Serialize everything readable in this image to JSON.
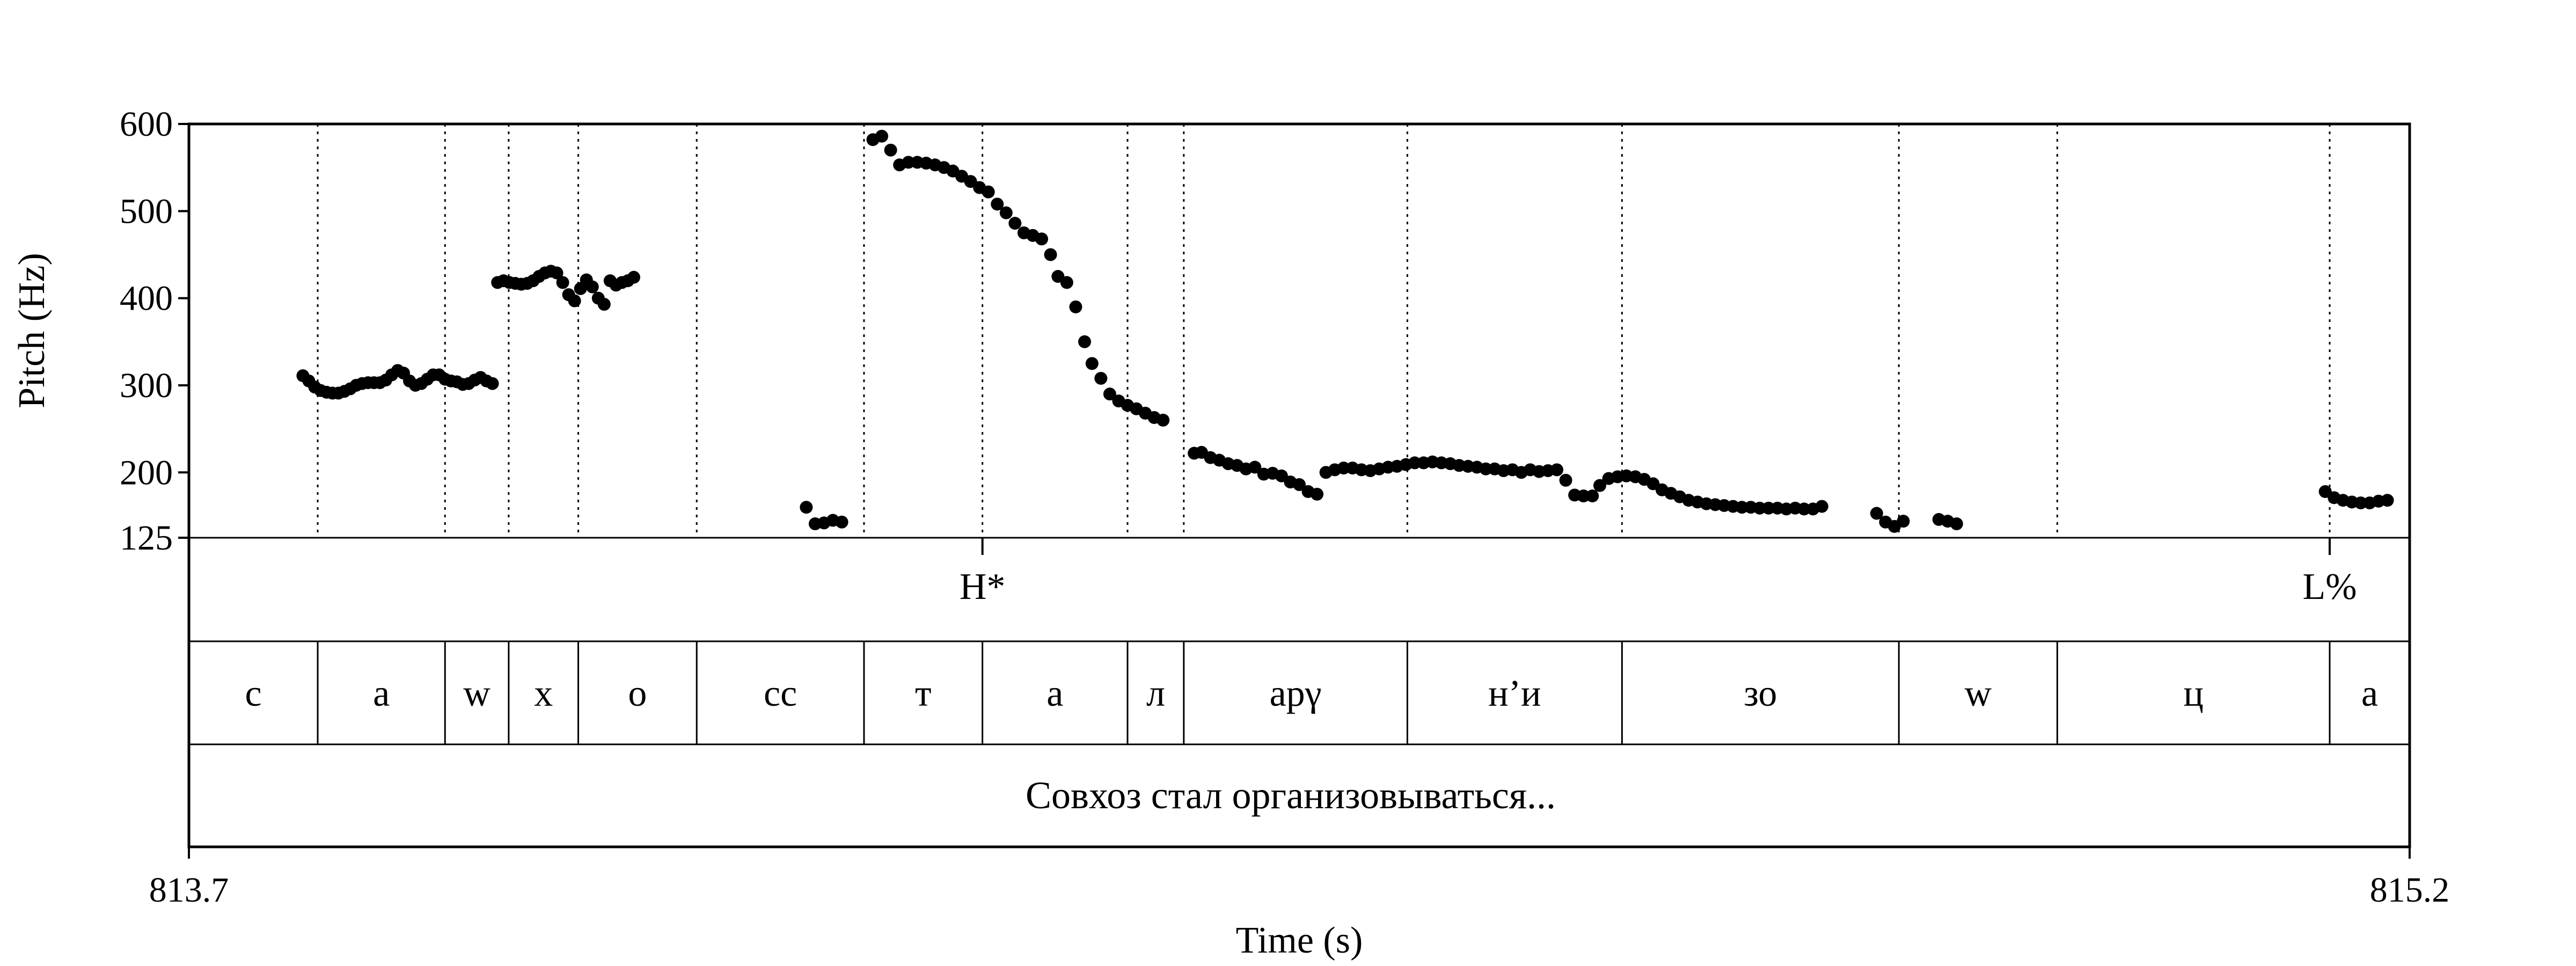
{
  "chart_data": {
    "type": "scatter",
    "xlabel": "Time (s)",
    "ylabel": "Pitch (Hz)",
    "xlim": [
      813.7,
      815.2
    ],
    "ylim": [
      125,
      600
    ],
    "y_ticks": [
      125,
      200,
      300,
      400,
      500,
      600
    ],
    "x_tick_labels": [
      "813.7",
      "815.2"
    ],
    "grid": false,
    "series": [
      {
        "values": [
          [
            813.777,
            311
          ],
          [
            813.781,
            305
          ],
          [
            813.785,
            298
          ],
          [
            813.789,
            294
          ],
          [
            813.793,
            292
          ],
          [
            813.797,
            291
          ],
          [
            813.801,
            291
          ],
          [
            813.805,
            293
          ],
          [
            813.809,
            296
          ],
          [
            813.813,
            300
          ],
          [
            813.817,
            302
          ],
          [
            813.821,
            303
          ],
          [
            813.825,
            303
          ],
          [
            813.829,
            303
          ],
          [
            813.833,
            306
          ],
          [
            813.837,
            312
          ],
          [
            813.841,
            317
          ],
          [
            813.845,
            314
          ],
          [
            813.849,
            305
          ],
          [
            813.853,
            300
          ],
          [
            813.857,
            302
          ],
          [
            813.861,
            307
          ],
          [
            813.865,
            312
          ],
          [
            813.869,
            312
          ],
          [
            813.873,
            307
          ],
          [
            813.877,
            305
          ],
          [
            813.881,
            304
          ],
          [
            813.885,
            301
          ],
          [
            813.889,
            302
          ],
          [
            813.893,
            306
          ],
          [
            813.897,
            309
          ],
          [
            813.901,
            305
          ],
          [
            813.905,
            302
          ],
          [
            813.9085,
            418
          ],
          [
            813.9125,
            420
          ],
          [
            813.9165,
            418
          ],
          [
            813.9205,
            417
          ],
          [
            813.9245,
            416
          ],
          [
            813.9285,
            417
          ],
          [
            813.9325,
            420
          ],
          [
            813.9365,
            425
          ],
          [
            813.9405,
            429
          ],
          [
            813.9445,
            431
          ],
          [
            813.9485,
            429
          ],
          [
            813.9525,
            418
          ],
          [
            813.9565,
            404
          ],
          [
            813.9605,
            397
          ],
          [
            813.9645,
            411
          ],
          [
            813.9685,
            421
          ],
          [
            813.9725,
            413
          ],
          [
            813.9765,
            400
          ],
          [
            813.9805,
            393
          ],
          [
            813.9845,
            420
          ],
          [
            813.9885,
            415
          ],
          [
            813.9925,
            418
          ],
          [
            813.9965,
            420
          ],
          [
            814.0005,
            424
          ],
          [
            814.117,
            160
          ],
          [
            814.123,
            141
          ],
          [
            814.129,
            142
          ],
          [
            814.135,
            145
          ],
          [
            814.141,
            143
          ],
          [
            814.162,
            582
          ],
          [
            814.168,
            586
          ],
          [
            814.174,
            570
          ],
          [
            814.18,
            553
          ],
          [
            814.186,
            556
          ],
          [
            814.192,
            556
          ],
          [
            814.198,
            555
          ],
          [
            814.204,
            553
          ],
          [
            814.21,
            550
          ],
          [
            814.216,
            546
          ],
          [
            814.222,
            540
          ],
          [
            814.228,
            534
          ],
          [
            814.234,
            527
          ],
          [
            814.24,
            522
          ],
          [
            814.246,
            508
          ],
          [
            814.252,
            498
          ],
          [
            814.258,
            486
          ],
          [
            814.264,
            475
          ],
          [
            814.27,
            472
          ],
          [
            814.276,
            468
          ],
          [
            814.282,
            450
          ],
          [
            814.287,
            425
          ],
          [
            814.293,
            418
          ],
          [
            814.299,
            390
          ],
          [
            814.305,
            350
          ],
          [
            814.31,
            325
          ],
          [
            814.316,
            308
          ],
          [
            814.322,
            290
          ],
          [
            814.328,
            282
          ],
          [
            814.334,
            277
          ],
          [
            814.34,
            273
          ],
          [
            814.346,
            268
          ],
          [
            814.352,
            263
          ],
          [
            814.358,
            260
          ],
          [
            814.379,
            222
          ],
          [
            814.384,
            223
          ],
          [
            814.39,
            217
          ],
          [
            814.396,
            214
          ],
          [
            814.402,
            210
          ],
          [
            814.408,
            208
          ],
          [
            814.414,
            204
          ],
          [
            814.42,
            206
          ],
          [
            814.426,
            198
          ],
          [
            814.432,
            199
          ],
          [
            814.438,
            196
          ],
          [
            814.444,
            189
          ],
          [
            814.45,
            186
          ],
          [
            814.456,
            178
          ],
          [
            814.462,
            175
          ],
          [
            814.468,
            200
          ],
          [
            814.474,
            203
          ],
          [
            814.48,
            205
          ],
          [
            814.486,
            205
          ],
          [
            814.492,
            203
          ],
          [
            814.498,
            202
          ],
          [
            814.504,
            204
          ],
          [
            814.51,
            206
          ],
          [
            814.516,
            207
          ],
          [
            814.522,
            209
          ],
          [
            814.528,
            211
          ],
          [
            814.534,
            211
          ],
          [
            814.54,
            212
          ],
          [
            814.546,
            211
          ],
          [
            814.552,
            210
          ],
          [
            814.558,
            208
          ],
          [
            814.564,
            207
          ],
          [
            814.57,
            206
          ],
          [
            814.576,
            204
          ],
          [
            814.582,
            204
          ],
          [
            814.588,
            202
          ],
          [
            814.594,
            203
          ],
          [
            814.6,
            200
          ],
          [
            814.606,
            203
          ],
          [
            814.612,
            201
          ],
          [
            814.618,
            202
          ],
          [
            814.624,
            203
          ],
          [
            814.63,
            191
          ],
          [
            814.636,
            174
          ],
          [
            814.642,
            173
          ],
          [
            814.648,
            173
          ],
          [
            814.653,
            185
          ],
          [
            814.659,
            193
          ],
          [
            814.665,
            195
          ],
          [
            814.671,
            196
          ],
          [
            814.677,
            195
          ],
          [
            814.683,
            192
          ],
          [
            814.689,
            187
          ],
          [
            814.695,
            180
          ],
          [
            814.701,
            176
          ],
          [
            814.707,
            172
          ],
          [
            814.713,
            168
          ],
          [
            814.719,
            166
          ],
          [
            814.725,
            164
          ],
          [
            814.731,
            163
          ],
          [
            814.737,
            162
          ],
          [
            814.743,
            161
          ],
          [
            814.749,
            160
          ],
          [
            814.755,
            160
          ],
          [
            814.761,
            159
          ],
          [
            814.767,
            159
          ],
          [
            814.773,
            159
          ],
          [
            814.779,
            158
          ],
          [
            814.785,
            159
          ],
          [
            814.791,
            158
          ],
          [
            814.797,
            158
          ],
          [
            814.803,
            161
          ],
          [
            814.84,
            153
          ],
          [
            814.846,
            143
          ],
          [
            814.852,
            138
          ],
          [
            814.858,
            144
          ],
          [
            814.882,
            146
          ],
          [
            814.888,
            144
          ],
          [
            814.894,
            141
          ],
          [
            815.143,
            178
          ],
          [
            815.149,
            171
          ],
          [
            815.155,
            168
          ],
          [
            815.161,
            166
          ],
          [
            815.167,
            165
          ],
          [
            815.173,
            165
          ],
          [
            815.179,
            167
          ],
          [
            815.185,
            168
          ]
        ]
      }
    ],
    "boundaries": [
      813.787,
      813.873,
      813.916,
      813.963,
      814.043,
      814.156,
      814.236,
      814.334,
      814.372,
      814.523,
      814.668,
      814.855,
      814.962,
      815.146
    ],
    "tone_tier": [
      {
        "label": "H*",
        "time": 814.236
      },
      {
        "label": "L%",
        "time": 815.146
      }
    ],
    "segment_tier": [
      {
        "label": "c",
        "start": 813.7,
        "end": 813.787
      },
      {
        "label": "a",
        "start": 813.787,
        "end": 813.873
      },
      {
        "label": "w",
        "start": 813.873,
        "end": 813.916
      },
      {
        "label": "x",
        "start": 813.916,
        "end": 813.963
      },
      {
        "label": "o",
        "start": 813.963,
        "end": 814.043
      },
      {
        "label": "cc",
        "start": 814.043,
        "end": 814.156
      },
      {
        "label": "т",
        "start": 814.156,
        "end": 814.236
      },
      {
        "label": "a",
        "start": 814.236,
        "end": 814.334
      },
      {
        "label": "л",
        "start": 814.334,
        "end": 814.372
      },
      {
        "label": "арγ",
        "start": 814.372,
        "end": 814.523
      },
      {
        "label": "н’и",
        "start": 814.523,
        "end": 814.668
      },
      {
        "label": "зо",
        "start": 814.668,
        "end": 814.855
      },
      {
        "label": "w",
        "start": 814.855,
        "end": 814.962
      },
      {
        "label": "ц",
        "start": 814.962,
        "end": 815.146
      },
      {
        "label": "a",
        "start": 815.146,
        "end": 815.2
      }
    ],
    "sentence_tier": "Совхоз стал организовываться..."
  }
}
